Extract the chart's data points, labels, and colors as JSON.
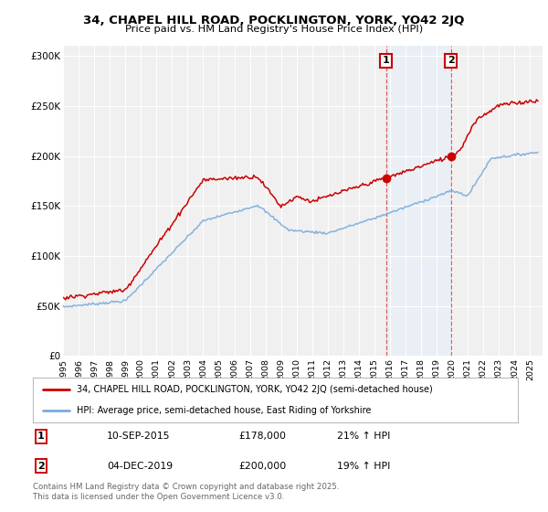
{
  "title": "34, CHAPEL HILL ROAD, POCKLINGTON, YORK, YO42 2JQ",
  "subtitle": "Price paid vs. HM Land Registry's House Price Index (HPI)",
  "ylim": [
    0,
    310000
  ],
  "yticks": [
    0,
    50000,
    100000,
    150000,
    200000,
    250000,
    300000
  ],
  "ytick_labels": [
    "£0",
    "£50K",
    "£100K",
    "£150K",
    "£200K",
    "£250K",
    "£300K"
  ],
  "red_color": "#cc0000",
  "blue_color": "#7aabdb",
  "shade_color": "#ddeeff",
  "marker1_year": 2015.75,
  "marker1_price": 178000,
  "marker2_year": 2019.92,
  "marker2_price": 200000,
  "legend1": "34, CHAPEL HILL ROAD, POCKLINGTON, YORK, YO42 2JQ (semi-detached house)",
  "legend2": "HPI: Average price, semi-detached house, East Riding of Yorkshire",
  "table_row1": [
    "1",
    "10-SEP-2015",
    "£178,000",
    "21% ↑ HPI"
  ],
  "table_row2": [
    "2",
    "04-DEC-2019",
    "£200,000",
    "19% ↑ HPI"
  ],
  "footnote": "Contains HM Land Registry data © Crown copyright and database right 2025.\nThis data is licensed under the Open Government Licence v3.0.",
  "background_color": "#ffffff",
  "plot_bg_color": "#f0f0f0"
}
